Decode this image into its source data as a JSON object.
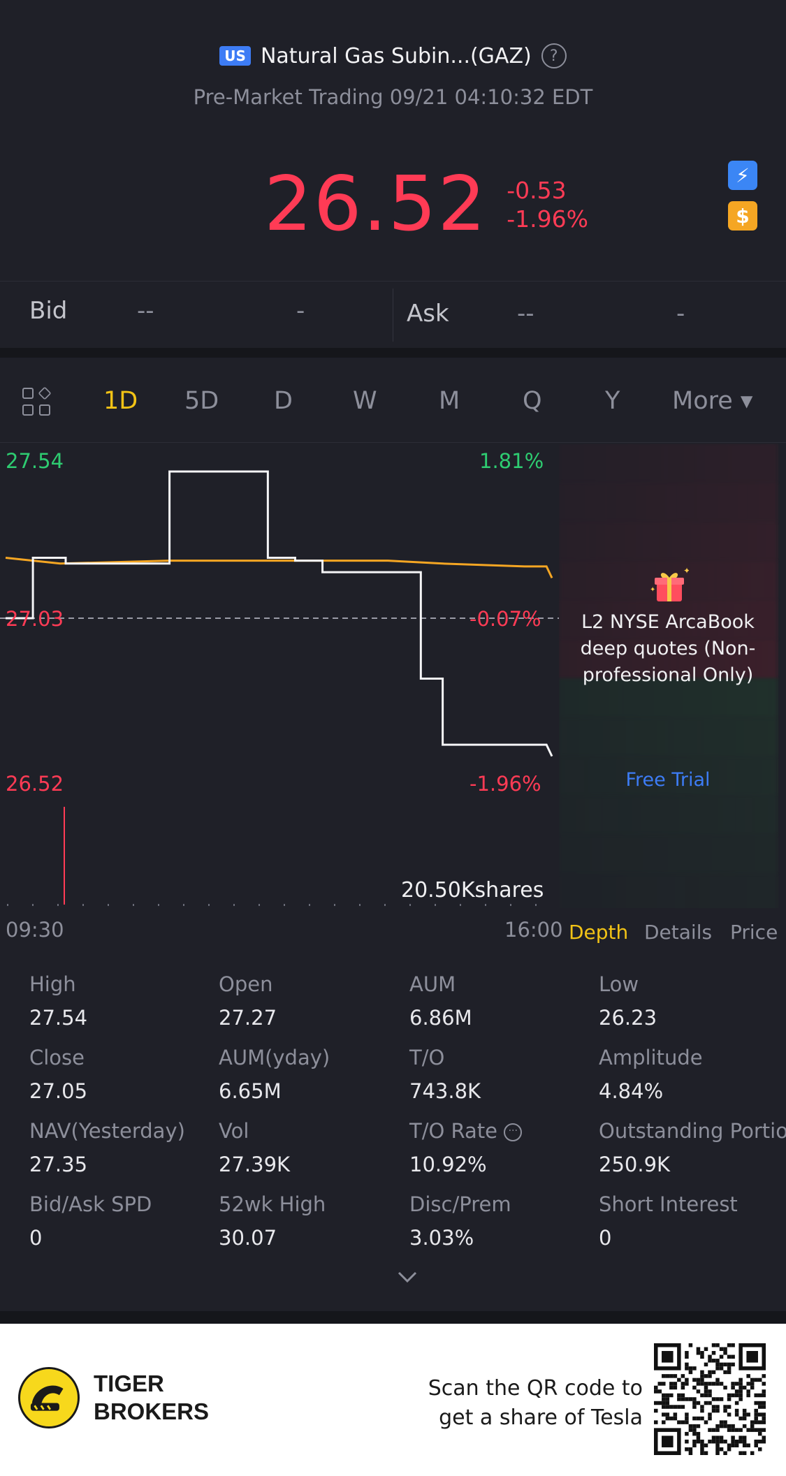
{
  "header": {
    "market_badge": "US",
    "title": "Natural Gas Subin...(GAZ)",
    "subtitle": "Pre-Market Trading 09/21 04:10:32 EDT"
  },
  "quote": {
    "price": "26.52",
    "change": "-0.53",
    "change_pct": "-1.96%"
  },
  "bidask": {
    "bid_label": "Bid",
    "bid_price": "--",
    "bid_size": "-",
    "ask_label": "Ask",
    "ask_price": "--",
    "ask_size": "-"
  },
  "tabs": [
    "1D",
    "5D",
    "D",
    "W",
    "M",
    "Q",
    "Y",
    "More ▾"
  ],
  "active_tab": "1D",
  "chart": {
    "top_price": "27.54",
    "top_pct": "1.81%",
    "mid_price": "27.03",
    "mid_pct": "-0.07%",
    "low_price": "26.52",
    "low_pct": "-1.96%",
    "volume": "20.50Kshares",
    "start_time": "09:30",
    "end_time": "16:00"
  },
  "chart_data": {
    "type": "line",
    "xlim": [
      "09:30",
      "16:00"
    ],
    "ylim": [
      26.52,
      27.54
    ],
    "series": [
      {
        "values": [
          [
            0,
            27.03
          ],
          [
            0.05,
            27.03
          ],
          [
            0.05,
            27.24
          ],
          [
            0.11,
            27.24
          ],
          [
            0.11,
            27.22
          ],
          [
            0.3,
            27.22
          ],
          [
            0.3,
            27.54
          ],
          [
            0.48,
            27.54
          ],
          [
            0.48,
            27.24
          ],
          [
            0.53,
            27.24
          ],
          [
            0.53,
            27.23
          ],
          [
            0.58,
            27.23
          ],
          [
            0.58,
            27.19
          ],
          [
            0.76,
            27.19
          ],
          [
            0.76,
            26.82
          ],
          [
            0.8,
            26.82
          ],
          [
            0.8,
            26.59
          ],
          [
            0.99,
            26.59
          ],
          [
            1.0,
            26.55
          ]
        ]
      },
      {
        "values": [
          [
            0,
            27.24
          ],
          [
            0.1,
            27.22
          ],
          [
            0.3,
            27.23
          ],
          [
            0.5,
            27.23
          ],
          [
            0.7,
            27.23
          ],
          [
            0.8,
            27.22
          ],
          [
            0.95,
            27.21
          ],
          [
            0.99,
            27.21
          ],
          [
            1.0,
            27.17
          ]
        ]
      }
    ],
    "reference_line": 27.03
  },
  "depth_panel": {
    "promo_text": "L2 NYSE ArcaBook deep quotes (Non-professional Only)",
    "free_trial": "Free Trial"
  },
  "depth_tabs": [
    "Depth",
    "Details",
    "Price"
  ],
  "stats": [
    {
      "k": "High",
      "v": "27.54"
    },
    {
      "k": "Open",
      "v": "27.27"
    },
    {
      "k": "AUM",
      "v": "6.86M"
    },
    {
      "k": "Low",
      "v": "26.23"
    },
    {
      "k": "Close",
      "v": "27.05"
    },
    {
      "k": "AUM(yday)",
      "v": "6.65M"
    },
    {
      "k": "T/O",
      "v": "743.8K"
    },
    {
      "k": "Amplitude",
      "v": "4.84%"
    },
    {
      "k": "NAV(Yesterday)",
      "v": "27.35"
    },
    {
      "k": "Vol",
      "v": "27.39K"
    },
    {
      "k": "T/O Rate",
      "v": "10.92%"
    },
    {
      "k": "Outstanding Portion",
      "v": "250.9K"
    },
    {
      "k": "Bid/Ask SPD",
      "v": "0"
    },
    {
      "k": "52wk High",
      "v": "30.07"
    },
    {
      "k": "Disc/Prem",
      "v": "3.03%"
    },
    {
      "k": "Short Interest",
      "v": "0"
    }
  ],
  "footer": {
    "brand_line1": "TIGER",
    "brand_line2": "BROKERS",
    "scan_line1": "Scan the QR code to",
    "scan_line2": "get a share of Tesla"
  },
  "colors": {
    "up": "#2ecc71",
    "down": "#ff3b55",
    "accent": "#f2c316",
    "link": "#3d7cf5"
  }
}
